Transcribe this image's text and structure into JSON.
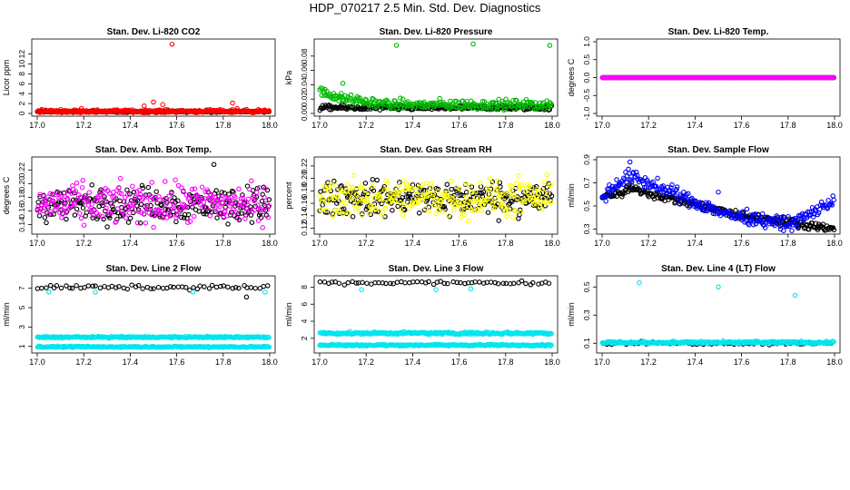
{
  "page": {
    "title": "HDP_070217  2.5 Min. Std. Dev. Diagnostics"
  },
  "chart_data": [
    {
      "type": "scatter",
      "title": "Stan. Dev. Li-820 CO2",
      "xlabel": "",
      "ylabel": "Licor ppm",
      "xlim": [
        17.0,
        18.0
      ],
      "ylim": [
        0,
        14.5
      ],
      "xticks": [
        "17.0",
        "17.2",
        "17.4",
        "17.6",
        "17.8",
        "18.0"
      ],
      "yticks": [
        "0",
        "2",
        "4",
        "6",
        "8",
        "10",
        "12"
      ],
      "series": [
        {
          "name": "black",
          "color": "#000000",
          "base": 0.35,
          "noise": 0.12,
          "spikes": []
        },
        {
          "name": "red",
          "color": "#ff0000",
          "base": 0.45,
          "noise": 0.25,
          "spikes": [
            [
              17.02,
              0.8
            ],
            [
              17.19,
              1.0
            ],
            [
              17.46,
              1.5
            ],
            [
              17.5,
              2.3
            ],
            [
              17.54,
              1.8
            ],
            [
              17.58,
              14.0
            ],
            [
              17.84,
              2.1
            ],
            [
              17.86,
              1.0
            ],
            [
              17.9,
              0.8
            ]
          ]
        }
      ]
    },
    {
      "type": "scatter",
      "title": "Stan. Dev. Li-820 Pressure",
      "xlabel": "",
      "ylabel": "kPa",
      "xlim": [
        17.0,
        18.0
      ],
      "ylim": [
        0,
        0.1
      ],
      "xticks": [
        "17.0",
        "17.2",
        "17.4",
        "17.6",
        "17.8",
        "18.0"
      ],
      "yticks": [
        "0.00",
        "0.02",
        "0.04",
        "0.06",
        "0.08"
      ],
      "series": [
        {
          "name": "black",
          "color": "#000000",
          "base": 0.008,
          "noise": 0.003,
          "spikes": []
        },
        {
          "name": "green",
          "color": "#00bb00",
          "base": 0.012,
          "noise": 0.006,
          "decay": [
            0.02,
            0.06
          ],
          "spikes": [
            [
              17.02,
              0.025
            ],
            [
              17.06,
              0.028
            ],
            [
              17.1,
              0.042
            ],
            [
              17.33,
              0.095
            ],
            [
              17.66,
              0.097
            ],
            [
              17.99,
              0.095
            ]
          ]
        }
      ]
    },
    {
      "type": "scatter",
      "title": "Stan. Dev. Li-820 Temp.",
      "xlabel": "",
      "ylabel": "degrees C",
      "xlim": [
        17.0,
        18.0
      ],
      "ylim": [
        -1.0,
        1.0
      ],
      "xticks": [
        "17.0",
        "17.2",
        "17.4",
        "17.6",
        "17.8",
        "18.0"
      ],
      "yticks": [
        "-1.0",
        "-0.5",
        "0.0",
        "0.5",
        "1.0"
      ],
      "series": [
        {
          "name": "black",
          "color": "#000000",
          "base": 0.0,
          "noise": 0.0,
          "spikes": []
        },
        {
          "name": "magenta",
          "color": "#ff00ff",
          "base": 0.0,
          "noise": 0.0,
          "spikes": []
        }
      ]
    },
    {
      "type": "scatter",
      "title": "Stan. Dev. Amb. Box Temp.",
      "xlabel": "",
      "ylabel": "degrees C",
      "xlim": [
        17.0,
        18.0
      ],
      "ylim": [
        0.13,
        0.235
      ],
      "xticks": [
        "17.0",
        "17.2",
        "17.4",
        "17.6",
        "17.8",
        "18.0"
      ],
      "yticks": [
        "0.14",
        "0.16",
        "0.18",
        "0.20",
        "0.22"
      ],
      "series": [
        {
          "name": "black",
          "color": "#000000",
          "base": 0.17,
          "noise": 0.022,
          "spikes": [
            [
              17.76,
              0.228
            ]
          ]
        },
        {
          "name": "magenta",
          "color": "#ff00ff",
          "base": 0.17,
          "noise": 0.025,
          "spikes": []
        }
      ]
    },
    {
      "type": "scatter",
      "title": "Stan. Dev. Gas Stream RH",
      "xlabel": "",
      "ylabel": "percent",
      "xlim": [
        17.0,
        18.0
      ],
      "ylim": [
        0.115,
        0.23
      ],
      "xticks": [
        "17.0",
        "17.2",
        "17.4",
        "17.6",
        "17.8",
        "18.0"
      ],
      "yticks": [
        "0.12",
        "0.14",
        "0.16",
        "0.18",
        "0.20",
        "0.22"
      ],
      "series": [
        {
          "name": "black",
          "color": "#000000",
          "base": 0.168,
          "noise": 0.024,
          "spikes": []
        },
        {
          "name": "yellow",
          "color": "#ffff00",
          "base": 0.168,
          "noise": 0.026,
          "spikes": []
        }
      ]
    },
    {
      "type": "scatter",
      "title": "Stan. Dev. Sample Flow",
      "xlabel": "",
      "ylabel": "ml/min",
      "xlim": [
        17.0,
        18.0
      ],
      "ylim": [
        0.28,
        0.9
      ],
      "xticks": [
        "17.0",
        "17.2",
        "17.4",
        "17.6",
        "17.8",
        "18.0"
      ],
      "yticks": [
        "0.3",
        "0.5",
        "0.7",
        "0.9"
      ],
      "series": [
        {
          "name": "black",
          "color": "#000000",
          "shape": "flow-black",
          "noise": 0.03,
          "spikes": []
        },
        {
          "name": "blue",
          "color": "#0000ff",
          "shape": "flow-blue",
          "noise": 0.05,
          "spikes": [
            [
              17.12,
              0.88
            ],
            [
              17.5,
              0.62
            ]
          ]
        }
      ]
    },
    {
      "type": "scatter",
      "title": "Stan. Dev. Line 2 Flow",
      "xlabel": "",
      "ylabel": "ml/min",
      "xlim": [
        17.0,
        18.0
      ],
      "ylim": [
        0.6,
        8.0
      ],
      "xticks": [
        "17.0",
        "17.2",
        "17.4",
        "17.6",
        "17.8",
        "18.0"
      ],
      "yticks": [
        "1",
        "3",
        "5",
        "7"
      ],
      "series": [
        {
          "name": "black",
          "color": "#000000",
          "base": 7.1,
          "noise": 0.18,
          "sparse": true,
          "spikes": [
            [
              17.9,
              6.1
            ]
          ]
        },
        {
          "name": "cyan-upper",
          "color": "#00e5ee",
          "base": 1.95,
          "noise": 0.07,
          "spikes": [
            [
              17.05,
              6.6
            ],
            [
              17.25,
              6.6
            ],
            [
              17.67,
              6.6
            ],
            [
              17.98,
              6.6
            ]
          ]
        },
        {
          "name": "cyan-lower",
          "color": "#00e5ee",
          "base": 0.95,
          "noise": 0.06,
          "spikes": []
        }
      ]
    },
    {
      "type": "scatter",
      "title": "Stan. Dev. Line 3 Flow",
      "xlabel": "",
      "ylabel": "ml/min",
      "xlim": [
        17.0,
        18.0
      ],
      "ylim": [
        0.6,
        9.0
      ],
      "xticks": [
        "17.0",
        "17.2",
        "17.4",
        "17.6",
        "17.8",
        "18.0"
      ],
      "yticks": [
        "2",
        "4",
        "6",
        "8"
      ],
      "series": [
        {
          "name": "black",
          "color": "#000000",
          "base": 8.5,
          "noise": 0.2,
          "sparse": true,
          "spikes": []
        },
        {
          "name": "cyan-upper",
          "color": "#00e5ee",
          "base": 2.6,
          "noise": 0.12,
          "spikes": [
            [
              17.18,
              7.7
            ],
            [
              17.5,
              7.7
            ],
            [
              17.65,
              7.8
            ]
          ]
        },
        {
          "name": "cyan-lower",
          "color": "#00e5ee",
          "base": 1.2,
          "noise": 0.08,
          "spikes": []
        }
      ]
    },
    {
      "type": "scatter",
      "title": "Stan. Dev. Line 4 (LT) Flow",
      "xlabel": "",
      "ylabel": "ml/min",
      "xlim": [
        17.0,
        18.0
      ],
      "ylim": [
        0.05,
        0.56
      ],
      "xticks": [
        "17.0",
        "17.2",
        "17.4",
        "17.6",
        "17.8",
        "18.0"
      ],
      "yticks": [
        "0.1",
        "0.3",
        "0.5"
      ],
      "series": [
        {
          "name": "black",
          "color": "#000000",
          "base": 0.1,
          "noise": 0.008,
          "sparse": true,
          "spikes": []
        },
        {
          "name": "cyan",
          "color": "#00e5ee",
          "base": 0.105,
          "noise": 0.008,
          "spikes": [
            [
              17.16,
              0.53
            ],
            [
              17.5,
              0.5
            ],
            [
              17.83,
              0.44
            ]
          ]
        }
      ]
    }
  ]
}
